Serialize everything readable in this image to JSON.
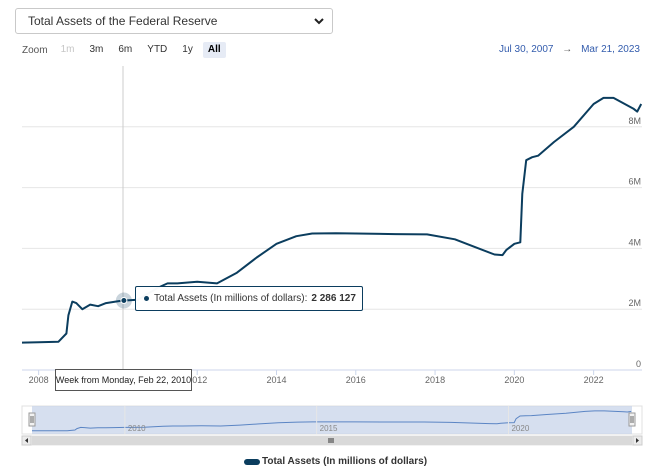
{
  "selector": {
    "value": "Total Assets of the Federal Reserve"
  },
  "zoom": {
    "label": "Zoom",
    "buttons": [
      {
        "label": "1m",
        "state": "disabled"
      },
      {
        "label": "3m",
        "state": "normal"
      },
      {
        "label": "6m",
        "state": "normal"
      },
      {
        "label": "YTD",
        "state": "normal"
      },
      {
        "label": "1y",
        "state": "normal"
      },
      {
        "label": "All",
        "state": "active"
      }
    ]
  },
  "range": {
    "from": "Jul 30, 2007",
    "arrow": "→",
    "to": "Mar 21, 2023"
  },
  "tooltip": {
    "series_label": "Total Assets (In millions of dollars):",
    "value": "2 286 127",
    "x_label": "Week from Monday, Feb 22, 2010"
  },
  "colors": {
    "series": "#0b3d5e",
    "navigator_fill": "#c8d4ea",
    "navigator_line": "#5b85c4"
  },
  "chart_data": {
    "type": "line",
    "title": "",
    "xlabel": "",
    "ylabel": "",
    "xlim": [
      2007.58,
      2023.22
    ],
    "ylim": [
      0,
      10000000
    ],
    "x_ticks": [
      "2008",
      "2010",
      "2012",
      "2014",
      "2016",
      "2018",
      "2020",
      "2022"
    ],
    "y_ticks": [
      "0",
      "2M",
      "4M",
      "6M",
      "8M"
    ],
    "legend": "bottom-center",
    "navigator_ticks": [
      "2010",
      "2015",
      "2020"
    ],
    "series": [
      {
        "name": "Total Assets (In millions of dollars)",
        "x": [
          2007.58,
          2008.0,
          2008.5,
          2008.7,
          2008.75,
          2008.85,
          2008.95,
          2009.1,
          2009.3,
          2009.5,
          2009.7,
          2010.0,
          2010.15,
          2010.5,
          2011.0,
          2011.25,
          2011.5,
          2012.0,
          2012.5,
          2013.0,
          2013.5,
          2014.0,
          2014.5,
          2014.9,
          2015.5,
          2016.0,
          2017.0,
          2017.8,
          2018.5,
          2019.0,
          2019.5,
          2019.7,
          2019.8,
          2020.0,
          2020.15,
          2020.2,
          2020.3,
          2020.45,
          2020.6,
          2021.0,
          2021.5,
          2022.0,
          2022.25,
          2022.5,
          2023.0,
          2023.1,
          2023.2
        ],
        "y": [
          900000,
          910000,
          930000,
          1200000,
          1800000,
          2250000,
          2200000,
          2000000,
          2150000,
          2100000,
          2200000,
          2260000,
          2286127,
          2310000,
          2700000,
          2850000,
          2850000,
          2900000,
          2850000,
          3200000,
          3700000,
          4150000,
          4400000,
          4490000,
          4500000,
          4490000,
          4470000,
          4460000,
          4300000,
          4050000,
          3800000,
          3780000,
          3950000,
          4150000,
          4200000,
          5800000,
          6900000,
          7000000,
          7050000,
          7500000,
          8000000,
          8750000,
          8950000,
          8950000,
          8600000,
          8500000,
          8750000
        ]
      }
    ]
  }
}
